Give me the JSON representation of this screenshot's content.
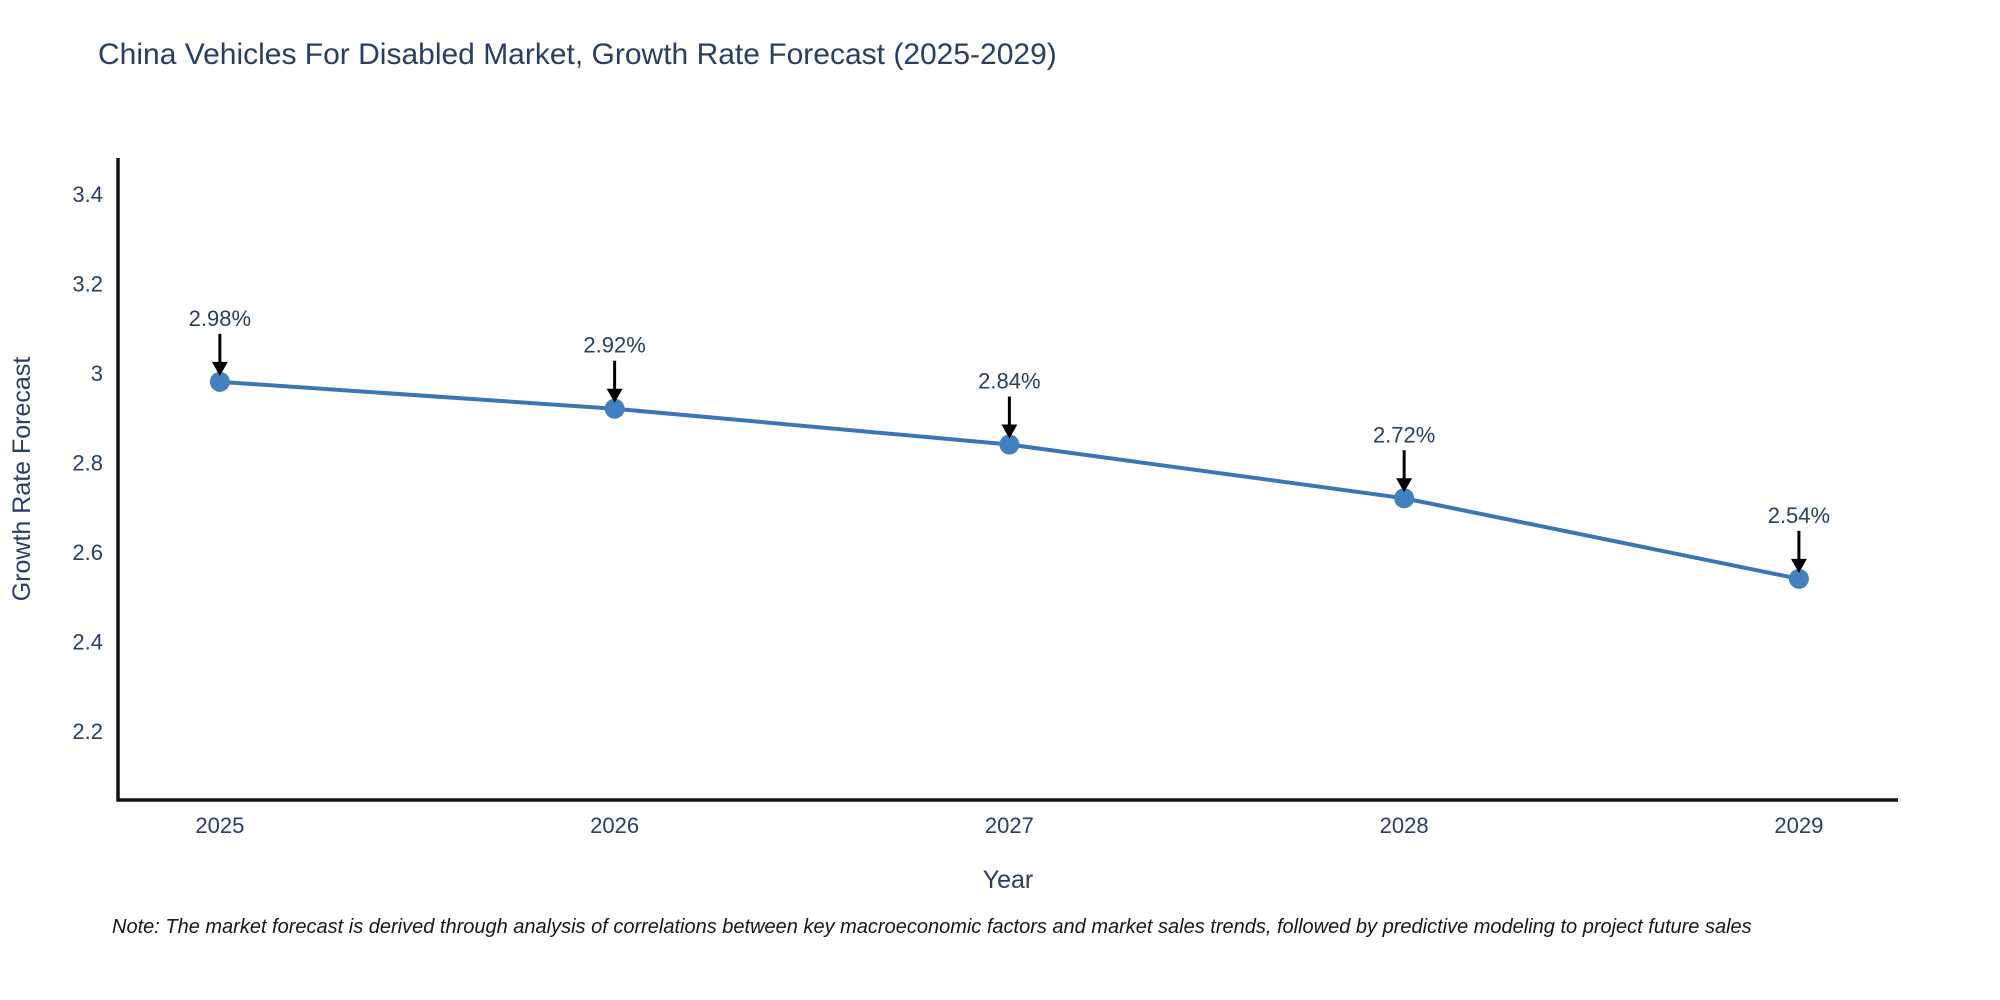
{
  "chart_data": {
    "type": "line",
    "title": "China Vehicles For Disabled Market, Growth Rate Forecast (2025-2029)",
    "xlabel": "Year",
    "ylabel": "Growth Rate Forecast",
    "x": [
      2025,
      2026,
      2027,
      2028,
      2029
    ],
    "values": [
      2.98,
      2.92,
      2.84,
      2.72,
      2.54
    ],
    "point_labels": [
      "2.98%",
      "2.92%",
      "2.84%",
      "2.72%",
      "2.54%"
    ],
    "x_tick_labels": [
      "2025",
      "2026",
      "2027",
      "2028",
      "2029"
    ],
    "y_tick_values": [
      2.2,
      2.4,
      2.6,
      2.8,
      3,
      3.2,
      3.4
    ],
    "y_tick_labels": [
      "2.2",
      "2.4",
      "2.6",
      "2.8",
      "3",
      "3.2",
      "3.4"
    ],
    "xlim": [
      2024.742,
      2029.251
    ],
    "ylim": [
      2.046,
      3.48
    ],
    "grid": false,
    "legend": "none",
    "note": "Note: The market forecast is derived through analysis of correlations between key macroeconomic factors and market sales trends, followed by predictive modeling to project future sales",
    "colors": {
      "line": "#3c76b2",
      "marker": "#4381bd",
      "axis_line": "#111111",
      "text": "#2a3f5f",
      "annotation_arrow": "#000000",
      "note_text": "#161616",
      "background": "#ffffff"
    }
  }
}
